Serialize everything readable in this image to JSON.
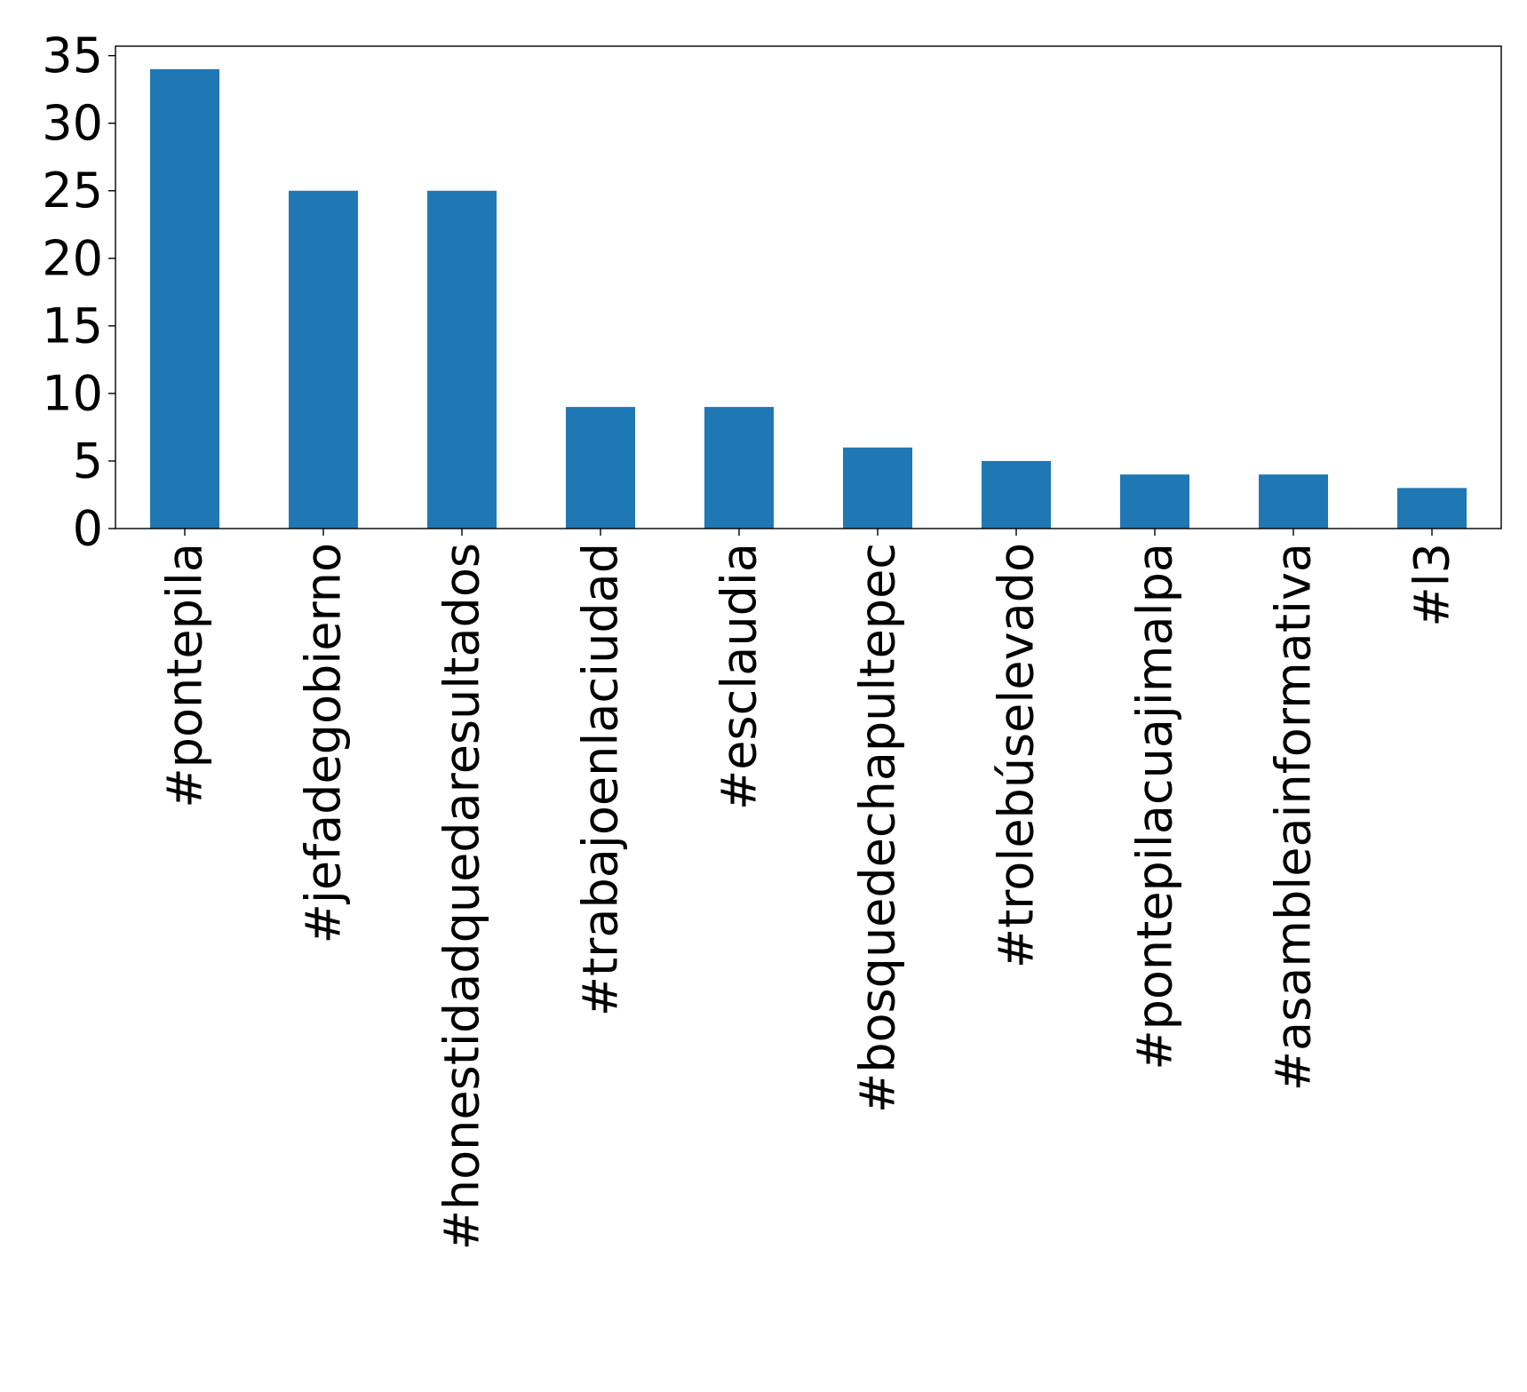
{
  "chart_data": {
    "type": "bar",
    "title": "",
    "xlabel": "",
    "ylabel": "",
    "categories": [
      "#pontepila",
      "#jefadegobierno",
      "#honestidadquedaresultados",
      "#trabajoenlaciudad",
      "#esclaudia",
      "#bosquedechapultepec",
      "#trolebúselevado",
      "#pontepilacuajimalpa",
      "#asambleainformativa",
      "#l3"
    ],
    "values": [
      34,
      25,
      25,
      9,
      9,
      6,
      5,
      4,
      4,
      3
    ],
    "ylim": [
      0,
      35.7
    ],
    "yticks": [
      0,
      5,
      10,
      15,
      20,
      25,
      30,
      35
    ],
    "grid": false,
    "legend": "none",
    "bar_color": "#1f77b4"
  }
}
